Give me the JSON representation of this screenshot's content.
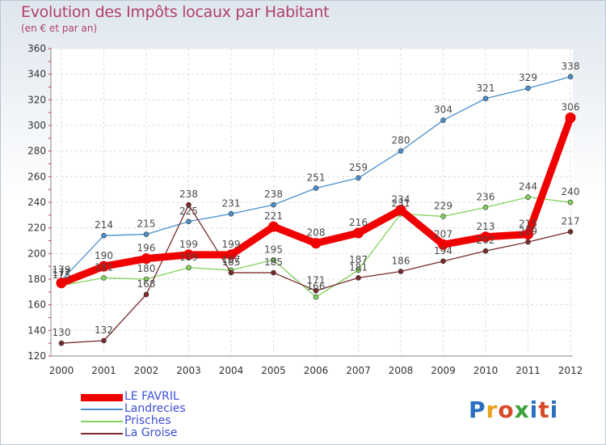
{
  "title": "Evolution des Impôts locaux par Habitant",
  "subtitle": "(en € et par an)",
  "logo": {
    "text": "Proxiti",
    "colors": [
      "#2a6fbf",
      "#e8a21c",
      "#d64a2a",
      "#3aa23a",
      "#2a6fbf",
      "#d64a2a",
      "#2a6fbf"
    ]
  },
  "chart_data": {
    "type": "line",
    "title": "Evolution des Impôts locaux par Habitant",
    "subtitle": "(en € et par an)",
    "xlabel": "",
    "ylabel": "",
    "categories": [
      "2000",
      "2001",
      "2002",
      "2003",
      "2004",
      "2005",
      "2006",
      "2007",
      "2008",
      "2009",
      "2010",
      "2011",
      "2012"
    ],
    "ylim": [
      120,
      360
    ],
    "yticks": [
      120,
      140,
      160,
      180,
      200,
      220,
      240,
      260,
      280,
      300,
      320,
      340,
      360
    ],
    "legend_position": "bottom-left",
    "series": [
      {
        "name": "Landrecies",
        "color": "#4a8fcc",
        "thick": false,
        "values": [
          179,
          214,
          215,
          225,
          231,
          238,
          251,
          259,
          280,
          304,
          321,
          329,
          338
        ]
      },
      {
        "name": "Prisches",
        "color": "#7fd15a",
        "thick": false,
        "values": [
          175,
          181,
          180,
          189,
          187,
          195,
          166,
          187,
          231,
          229,
          236,
          244,
          240
        ]
      },
      {
        "name": "La Groise",
        "color": "#7a2a2a",
        "thick": false,
        "values": [
          130,
          132,
          168,
          238,
          185,
          185,
          171,
          181,
          186,
          194,
          202,
          209,
          217
        ]
      },
      {
        "name": "LE FAVRIL",
        "color": "#f00000",
        "thick": true,
        "values": [
          177,
          190,
          196,
          199,
          199,
          221,
          208,
          216,
          234,
          207,
          213,
          215,
          306
        ]
      }
    ],
    "legend_order": [
      "LE FAVRIL",
      "Landrecies",
      "Prisches",
      "La Groise"
    ],
    "label_color": "#4a4a4a",
    "legend_text_color": "#3b4fd8"
  }
}
